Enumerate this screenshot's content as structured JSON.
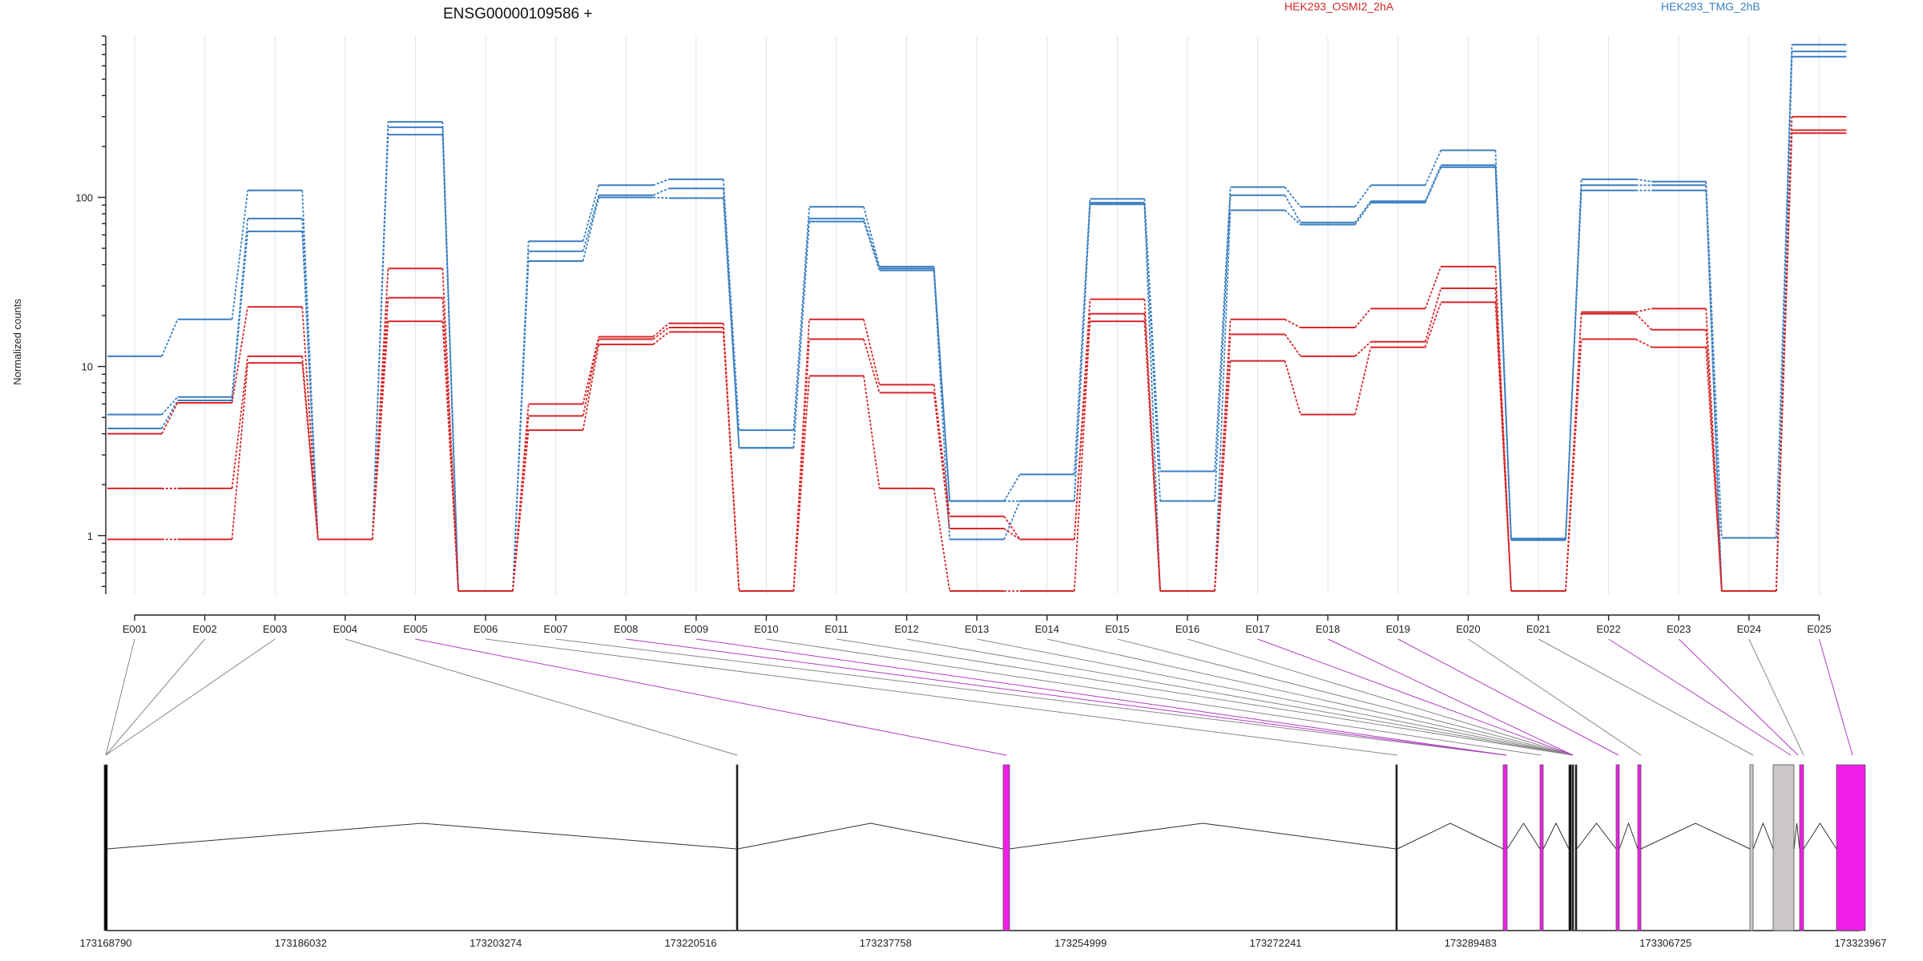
{
  "chart_data": {
    "type": "line",
    "title": "ENSG00000109586 +",
    "ylabel": "Normalized counts",
    "yscale": "log",
    "ylim": [
      0.45,
      900
    ],
    "yticks": [
      1,
      10,
      100
    ],
    "ytick_labels": [
      "1",
      "10",
      "100"
    ],
    "categories": [
      "E001",
      "E002",
      "E003",
      "E004",
      "E005",
      "E006",
      "E007",
      "E008",
      "E009",
      "E010",
      "E011",
      "E012",
      "E013",
      "E014",
      "E015",
      "E016",
      "E017",
      "E018",
      "E019",
      "E020",
      "E021",
      "E022",
      "E023",
      "E024",
      "E025"
    ],
    "legend": [
      {
        "label": "HEK293_OSMI2_2hA",
        "color": "#d62728"
      },
      {
        "label": "HEK293_TMG_2hB",
        "color": "#3a7fc1"
      }
    ],
    "series": [
      {
        "group": "HEK293_TMG_2hB",
        "color": "#3a7fc1",
        "values": [
          11.5,
          19,
          110,
          0.95,
          280,
          0.47,
          55,
          118,
          128,
          4.2,
          88,
          39,
          1.6,
          2.3,
          98,
          2.4,
          115,
          88,
          118,
          190,
          0.96,
          128,
          124,
          0.97,
          800
        ]
      },
      {
        "group": "HEK293_TMG_2hB",
        "color": "#3a7fc1",
        "values": [
          5.2,
          6.6,
          75,
          0.95,
          260,
          0.47,
          48,
          103,
          113,
          3.3,
          75,
          38,
          1.6,
          1.6,
          93,
          1.6,
          103,
          71,
          95,
          155,
          0.95,
          118,
          118,
          0.47,
          730
        ]
      },
      {
        "group": "HEK293_TMG_2hB",
        "color": "#3a7fc1",
        "values": [
          4.3,
          6.3,
          63,
          0.95,
          235,
          0.47,
          42,
          100,
          99,
          3.3,
          72,
          37,
          0.95,
          1.6,
          91,
          0.47,
          84,
          69,
          93,
          151,
          0.94,
          110,
          110,
          0.47,
          680
        ]
      },
      {
        "group": "HEK293_OSMI2_2hA",
        "color": "#d62728",
        "values": [
          4.0,
          6.1,
          22.5,
          0.95,
          38,
          0.47,
          6.0,
          15,
          18,
          0.47,
          19,
          7.8,
          1.3,
          0.95,
          25,
          0.47,
          19,
          17,
          22,
          39,
          0.47,
          21,
          22,
          0.47,
          300
        ]
      },
      {
        "group": "HEK293_OSMI2_2hA",
        "color": "#d62728",
        "values": [
          1.9,
          1.9,
          11.5,
          0.95,
          25.5,
          0.47,
          5.1,
          14.5,
          17,
          0.47,
          14.5,
          7.0,
          1.1,
          0.95,
          20.5,
          0.47,
          15.5,
          11.5,
          14,
          29,
          0.47,
          20.5,
          16.5,
          0.47,
          250
        ]
      },
      {
        "group": "HEK293_OSMI2_2hA",
        "color": "#d62728",
        "values": [
          0.95,
          0.95,
          10.5,
          0.95,
          18.5,
          0.47,
          4.2,
          13.5,
          16,
          0.47,
          8.8,
          1.9,
          0.47,
          0.47,
          18.5,
          0.47,
          10.8,
          5.2,
          13,
          24,
          0.47,
          14.5,
          13,
          0.47,
          240
        ]
      }
    ],
    "genomic_axis": {
      "tick_labels": [
        "173168790",
        "173186032",
        "173203274",
        "173220516",
        "173237758",
        "173254999",
        "173272241",
        "173289483",
        "173306725",
        "173323967"
      ]
    },
    "exon_highlight": [
      "E005",
      "E008",
      "E009",
      "E017",
      "E018",
      "E019",
      "E022",
      "E023",
      "E025"
    ]
  },
  "colors": {
    "axis": "#222222",
    "grid": "#dde3ea",
    "connector": "#888888",
    "highlight": "#b03cc0",
    "exon_magenta": "#f01ee8",
    "exon_gray": "#cdc6c6"
  }
}
